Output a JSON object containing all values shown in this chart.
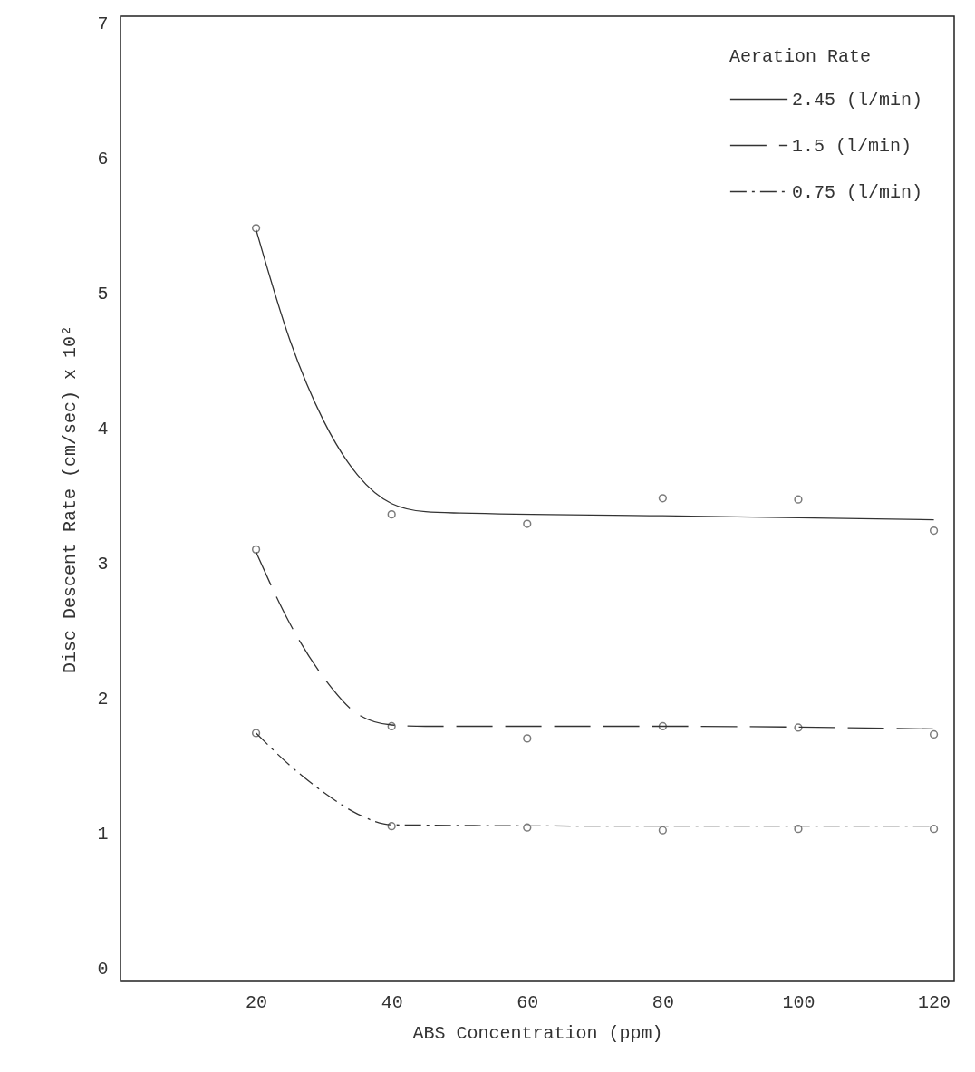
{
  "chart_data": {
    "type": "scatter",
    "xlabel": "ABS Concentration (ppm)",
    "ylabel": "Disc Descent Rate (cm/sec) x 10²",
    "legend_title": "Aeration Rate",
    "xlim": [
      0,
      123
    ],
    "ylim": [
      -0.1,
      7.05
    ],
    "xticks": [
      20,
      40,
      60,
      80,
      100,
      120
    ],
    "yticks": [
      0,
      1,
      2,
      3,
      4,
      5,
      6,
      7
    ],
    "grid": false,
    "legend": "top right",
    "series": [
      {
        "type": "scatter",
        "color": "#444444",
        "marker": "circle",
        "x": [
          20,
          40,
          60,
          80,
          100,
          120
        ],
        "values": [
          5.48,
          3.36,
          3.29,
          3.48,
          3.47,
          3.24
        ]
      },
      {
        "type": "scatter",
        "color": "#444444",
        "marker": "circle",
        "x": [
          20,
          40,
          60,
          80,
          100,
          120
        ],
        "values": [
          3.1,
          1.79,
          1.7,
          1.79,
          1.78,
          1.73
        ]
      },
      {
        "type": "scatter",
        "color": "#444444",
        "marker": "circle",
        "x": [
          20,
          40,
          60,
          80,
          100,
          120
        ],
        "values": [
          1.74,
          1.05,
          1.04,
          1.02,
          1.03,
          1.03
        ]
      },
      {
        "type": "line",
        "name": "2.45 (l/min)",
        "color": "#333333",
        "line_style": "solid",
        "marker": "none",
        "x": [
          20,
          25,
          30,
          35,
          40,
          45,
          50,
          80,
          120
        ],
        "values": [
          5.47,
          4.65,
          4.05,
          3.65,
          3.44,
          3.38,
          3.37,
          3.35,
          3.32
        ]
      },
      {
        "type": "line",
        "name": "1.5  (l/min)",
        "color": "#333333",
        "line_style": "dashed",
        "marker": "none",
        "x": [
          20,
          25,
          30,
          35,
          40,
          45,
          80,
          120
        ],
        "values": [
          3.08,
          2.55,
          2.15,
          1.88,
          1.8,
          1.79,
          1.79,
          1.77
        ]
      },
      {
        "type": "line",
        "name": "0.75 (l/min)",
        "color": "#333333",
        "line_style": "dotted",
        "marker": "none",
        "x": [
          20,
          25,
          30,
          35,
          40,
          80,
          120
        ],
        "values": [
          1.74,
          1.5,
          1.3,
          1.14,
          1.06,
          1.05,
          1.05
        ]
      }
    ]
  }
}
